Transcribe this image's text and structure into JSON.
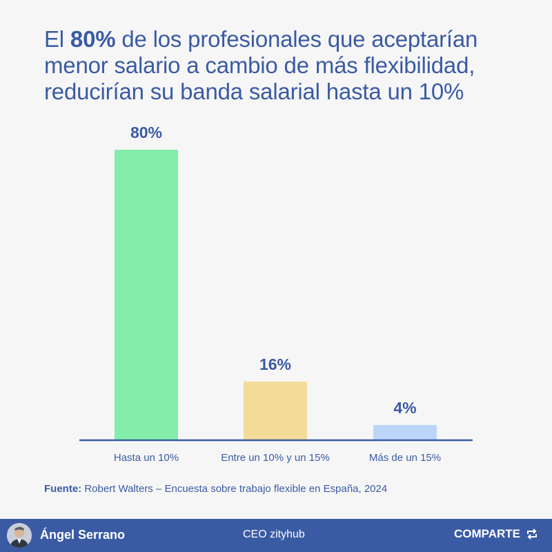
{
  "title": {
    "before": "El ",
    "highlight": "80%",
    "after": " de los profesionales que aceptarían menor salario a cambio de más flexibilidad, reducirían su banda salarial hasta un 10%"
  },
  "chart_data": {
    "type": "bar",
    "categories": [
      "Hasta un 10%",
      "Entre un 10% y un 15%",
      "Más de un 15%"
    ],
    "values": [
      80,
      16,
      4
    ],
    "value_labels": [
      "80%",
      "16%",
      "4%"
    ],
    "colors": [
      "#82eeaa",
      "#f3dc98",
      "#bdd5fb"
    ],
    "axis_color": "#3a5ba4",
    "label_color": "#3a5ba4",
    "ylim": [
      0,
      80
    ],
    "grid": false
  },
  "source": {
    "label": "Fuente:",
    "text": " Robert Walters – Encuesta sobre trabajo flexible en España, 2024"
  },
  "footer": {
    "author": "Ángel Serrano",
    "role": "CEO zityhub",
    "share_label": "COMPARTE",
    "share_icon": "repost-icon",
    "background": "#3a5ba4"
  }
}
